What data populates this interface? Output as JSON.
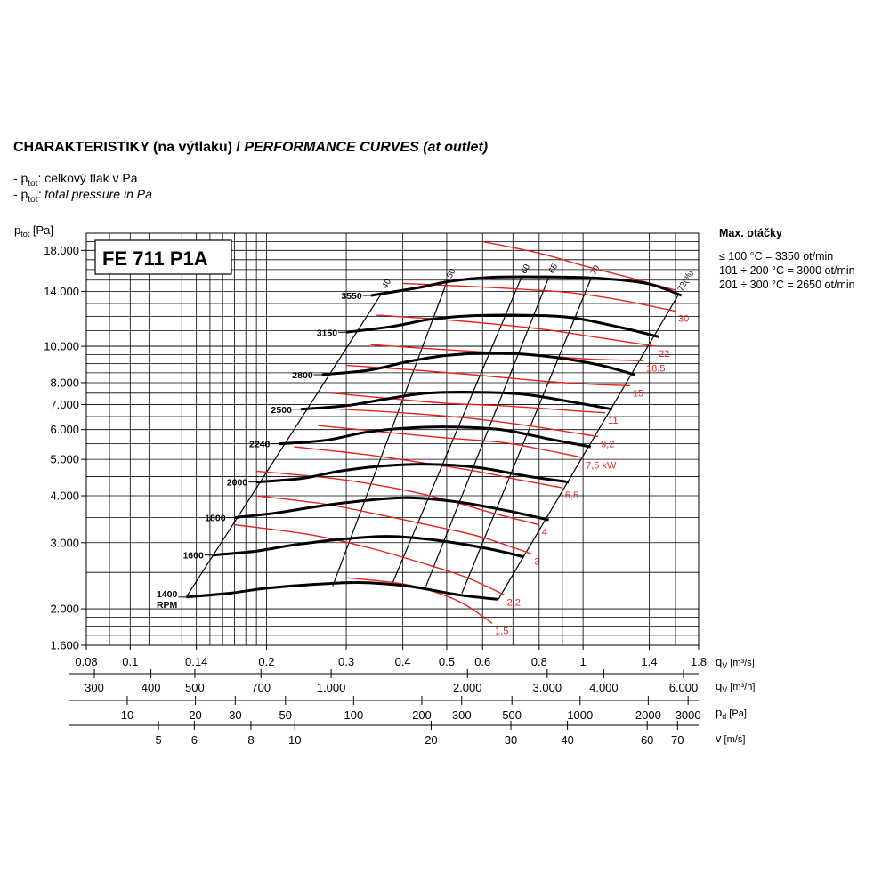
{
  "header": {
    "title_cz": "CHARAKTERISTIKY (na výtlaku) /",
    "title_en": "PERFORMANCE CURVES (at outlet)",
    "notes": [
      {
        "prefix": "- p",
        "sub": "tot",
        "text": ": celkový tlak v Pa",
        "italic": false
      },
      {
        "prefix": "- p",
        "sub": "tot",
        "text": ": total pressure in Pa",
        "italic": true
      }
    ]
  },
  "max_speed": {
    "title": "Max. otáčky",
    "lines": [
      "≤ 100 °C = 3350 ot/min",
      "101 ÷ 200 °C = 3000 ot/min",
      "201 ÷ 300 °C = 2650 ot/min"
    ]
  },
  "colors": {
    "rpm_curve": "#000000",
    "power_curve": "#e8231e",
    "grid": "#000000"
  },
  "chart_data": {
    "type": "line",
    "model_label": "FE 711 P1A",
    "x_scale": "log",
    "y_scale": "log",
    "xlim": [
      0.08,
      1.8
    ],
    "ylim": [
      1600,
      20000
    ],
    "grid": true,
    "y_axis": {
      "label": "p",
      "label_sub": "tot",
      "label_unit": "[Pa]",
      "ticks": [
        {
          "value": 1600,
          "label": "1.600"
        },
        {
          "value": 2000,
          "label": "2.000"
        },
        {
          "value": 3000,
          "label": "3.000"
        },
        {
          "value": 4000,
          "label": "4.000"
        },
        {
          "value": 5000,
          "label": "5.000"
        },
        {
          "value": 6000,
          "label": "6.000"
        },
        {
          "value": 7000,
          "label": "7.000"
        },
        {
          "value": 8000,
          "label": "8.000"
        },
        {
          "value": 10000,
          "label": "10.000"
        },
        {
          "value": 14000,
          "label": "14.000"
        },
        {
          "value": 18000,
          "label": "18.000"
        }
      ]
    },
    "x_axes": [
      {
        "name": "q",
        "sub": "V",
        "unit": "[m³/s]",
        "ticks": [
          {
            "v": 0.08,
            "label": "0.08"
          },
          {
            "v": 0.1,
            "label": "0.1"
          },
          {
            "v": 0.14,
            "label": "0.14"
          },
          {
            "v": 0.2,
            "label": "0.2"
          },
          {
            "v": 0.3,
            "label": "0.3"
          },
          {
            "v": 0.4,
            "label": "0.4"
          },
          {
            "v": 0.5,
            "label": "0.5"
          },
          {
            "v": 0.6,
            "label": "0.6"
          },
          {
            "v": 0.8,
            "label": "0.8"
          },
          {
            "v": 1,
            "label": "1"
          },
          {
            "v": 1.4,
            "label": "1.4"
          },
          {
            "v": 1.8,
            "label": "1.8"
          }
        ]
      },
      {
        "name": "q",
        "sub": "V",
        "unit": "[m³/h]",
        "ticks": [
          {
            "v": 300,
            "label": "300"
          },
          {
            "v": 400,
            "label": "400"
          },
          {
            "v": 500,
            "label": "500"
          },
          {
            "v": 700,
            "label": "700"
          },
          {
            "v": 1000,
            "label": "1.000"
          },
          {
            "v": 2000,
            "label": "2.000"
          },
          {
            "v": 3000,
            "label": "3.000"
          },
          {
            "v": 4000,
            "label": "4.000"
          },
          {
            "v": 6000,
            "label": "6.000"
          }
        ]
      },
      {
        "name": "p",
        "sub": "d",
        "unit": "[Pa]",
        "ticks": [
          {
            "v": 10,
            "label": "10"
          },
          {
            "v": 20,
            "label": "20"
          },
          {
            "v": 30,
            "label": "30"
          },
          {
            "v": 50,
            "label": "50"
          },
          {
            "v": 100,
            "label": "100"
          },
          {
            "v": 200,
            "label": "200"
          },
          {
            "v": 300,
            "label": "300"
          },
          {
            "v": 500,
            "label": "500"
          },
          {
            "v": 1000,
            "label": "1000"
          },
          {
            "v": 2000,
            "label": "2000"
          },
          {
            "v": 3000,
            "label": "3000"
          }
        ]
      },
      {
        "name": "v",
        "sub": "",
        "unit": "[m/s]",
        "ticks": [
          {
            "v": 5,
            "label": "5"
          },
          {
            "v": 6,
            "label": "6"
          },
          {
            "v": 8,
            "label": "8"
          },
          {
            "v": 10,
            "label": "10"
          },
          {
            "v": 20,
            "label": "20"
          },
          {
            "v": 30,
            "label": "30"
          },
          {
            "v": 40,
            "label": "40"
          },
          {
            "v": 60,
            "label": "60"
          },
          {
            "v": 70,
            "label": "70"
          }
        ]
      }
    ],
    "rpm_curves": [
      {
        "label": "3550",
        "points": [
          [
            0.34,
            13650
          ],
          [
            0.43,
            14300
          ],
          [
            0.51,
            14900
          ],
          [
            0.62,
            15250
          ],
          [
            0.8,
            15300
          ],
          [
            1.05,
            15200
          ],
          [
            1.38,
            14700
          ],
          [
            1.65,
            13650
          ]
        ]
      },
      {
        "label": "3150",
        "points": [
          [
            0.3,
            10900
          ],
          [
            0.38,
            11300
          ],
          [
            0.46,
            11800
          ],
          [
            0.56,
            12050
          ],
          [
            0.72,
            12100
          ],
          [
            0.93,
            11950
          ],
          [
            1.2,
            11250
          ],
          [
            1.47,
            10600
          ]
        ]
      },
      {
        "label": "2800",
        "points": [
          [
            0.265,
            8400
          ],
          [
            0.34,
            8650
          ],
          [
            0.41,
            9100
          ],
          [
            0.5,
            9450
          ],
          [
            0.64,
            9600
          ],
          [
            0.83,
            9400
          ],
          [
            1.07,
            8950
          ],
          [
            1.3,
            8400
          ]
        ]
      },
      {
        "label": "2500",
        "points": [
          [
            0.238,
            6800
          ],
          [
            0.3,
            6950
          ],
          [
            0.37,
            7250
          ],
          [
            0.45,
            7500
          ],
          [
            0.57,
            7550
          ],
          [
            0.74,
            7450
          ],
          [
            0.95,
            7100
          ],
          [
            1.16,
            6800
          ]
        ]
      },
      {
        "label": "2240",
        "points": [
          [
            0.213,
            5500
          ],
          [
            0.27,
            5620
          ],
          [
            0.33,
            5900
          ],
          [
            0.4,
            6050
          ],
          [
            0.51,
            6100
          ],
          [
            0.66,
            6000
          ],
          [
            0.85,
            5650
          ],
          [
            1.04,
            5400
          ]
        ]
      },
      {
        "label": "2000",
        "points": [
          [
            0.19,
            4350
          ],
          [
            0.24,
            4450
          ],
          [
            0.29,
            4650
          ],
          [
            0.36,
            4800
          ],
          [
            0.46,
            4850
          ],
          [
            0.59,
            4750
          ],
          [
            0.76,
            4500
          ],
          [
            0.93,
            4350
          ]
        ]
      },
      {
        "label": "1800",
        "points": [
          [
            0.17,
            3500
          ],
          [
            0.21,
            3600
          ],
          [
            0.26,
            3750
          ],
          [
            0.32,
            3870
          ],
          [
            0.41,
            3950
          ],
          [
            0.53,
            3850
          ],
          [
            0.68,
            3650
          ],
          [
            0.84,
            3450
          ]
        ]
      },
      {
        "label": "1600",
        "points": [
          [
            0.152,
            2780
          ],
          [
            0.19,
            2850
          ],
          [
            0.23,
            2960
          ],
          [
            0.29,
            3060
          ],
          [
            0.37,
            3120
          ],
          [
            0.47,
            3050
          ],
          [
            0.61,
            2900
          ],
          [
            0.74,
            2750
          ]
        ]
      },
      {
        "label": "1400",
        "sub_label": "RPM",
        "points": [
          [
            0.133,
            2150
          ],
          [
            0.165,
            2200
          ],
          [
            0.2,
            2270
          ],
          [
            0.25,
            2320
          ],
          [
            0.32,
            2350
          ],
          [
            0.41,
            2300
          ],
          [
            0.53,
            2180
          ],
          [
            0.65,
            2120
          ]
        ]
      }
    ],
    "power_curves": [
      {
        "label": "1,5",
        "points": [
          [
            0.3,
            2420
          ],
          [
            0.4,
            2330
          ],
          [
            0.48,
            2200
          ],
          [
            0.55,
            2050
          ],
          [
            0.63,
            1830
          ]
        ]
      },
      {
        "label": "2,2",
        "points": [
          [
            0.17,
            3350
          ],
          [
            0.25,
            3150
          ],
          [
            0.34,
            2900
          ],
          [
            0.44,
            2650
          ],
          [
            0.55,
            2430
          ],
          [
            0.67,
            2180
          ]
        ]
      },
      {
        "label": "3",
        "points": [
          [
            0.19,
            4000
          ],
          [
            0.27,
            3800
          ],
          [
            0.36,
            3550
          ],
          [
            0.48,
            3300
          ],
          [
            0.6,
            3100
          ],
          [
            0.77,
            2800
          ]
        ]
      },
      {
        "label": "4",
        "points": [
          [
            0.19,
            4650
          ],
          [
            0.28,
            4450
          ],
          [
            0.38,
            4200
          ],
          [
            0.5,
            3900
          ],
          [
            0.63,
            3600
          ],
          [
            0.8,
            3350
          ]
        ]
      },
      {
        "label": "5,5",
        "points": [
          [
            0.23,
            5400
          ],
          [
            0.33,
            5150
          ],
          [
            0.44,
            4900
          ],
          [
            0.58,
            4650
          ],
          [
            0.73,
            4400
          ],
          [
            0.9,
            4200
          ]
        ]
      },
      {
        "label": "7,5 kW",
        "points": [
          [
            0.26,
            6150
          ],
          [
            0.37,
            5900
          ],
          [
            0.5,
            5700
          ],
          [
            0.66,
            5550
          ],
          [
            0.82,
            5300
          ],
          [
            1.0,
            5050
          ]
        ]
      },
      {
        "label": "9,2",
        "points": [
          [
            0.29,
            6800
          ],
          [
            0.4,
            6650
          ],
          [
            0.55,
            6450
          ],
          [
            0.72,
            6200
          ],
          [
            0.9,
            5950
          ],
          [
            1.08,
            5750
          ]
        ]
      },
      {
        "label": "11",
        "points": [
          [
            0.28,
            7500
          ],
          [
            0.38,
            7250
          ],
          [
            0.5,
            7050
          ],
          [
            0.66,
            6950
          ],
          [
            0.86,
            6800
          ],
          [
            1.12,
            6650
          ]
        ]
      },
      {
        "label": "15",
        "points": [
          [
            0.3,
            8900
          ],
          [
            0.42,
            8650
          ],
          [
            0.57,
            8400
          ],
          [
            0.75,
            8150
          ],
          [
            0.98,
            7950
          ],
          [
            1.27,
            7850
          ]
        ]
      },
      {
        "label": "18,5",
        "points": [
          [
            0.34,
            10100
          ],
          [
            0.46,
            9850
          ],
          [
            0.61,
            9650
          ],
          [
            0.8,
            9450
          ],
          [
            1.03,
            9250
          ],
          [
            1.36,
            9150
          ]
        ]
      },
      {
        "label": "22",
        "points": [
          [
            0.35,
            12100
          ],
          [
            0.48,
            11800
          ],
          [
            0.64,
            11450
          ],
          [
            0.84,
            11050
          ],
          [
            1.08,
            10550
          ],
          [
            1.45,
            10000
          ]
        ]
      },
      {
        "label": "30",
        "points": [
          [
            0.4,
            14700
          ],
          [
            0.55,
            14450
          ],
          [
            0.72,
            14200
          ],
          [
            0.93,
            13900
          ],
          [
            1.2,
            13300
          ],
          [
            1.6,
            12400
          ]
        ]
      },
      {
        "label": "",
        "points": [
          [
            0.6,
            19000
          ],
          [
            0.8,
            17700
          ],
          [
            1.0,
            16400
          ],
          [
            1.25,
            15300
          ],
          [
            1.6,
            14100
          ]
        ]
      }
    ],
    "efficiency_lines": [
      {
        "label": "40",
        "points": [
          [
            0.133,
            2150
          ],
          [
            0.36,
            13900
          ]
        ]
      },
      {
        "label": "50",
        "points": [
          [
            0.28,
            2300
          ],
          [
            0.5,
            14800
          ]
        ]
      },
      {
        "label": "60",
        "points": [
          [
            0.38,
            2350
          ],
          [
            0.73,
            15200
          ]
        ]
      },
      {
        "label": "65",
        "points": [
          [
            0.45,
            2300
          ],
          [
            0.84,
            15250
          ]
        ]
      },
      {
        "label": "70",
        "points": [
          [
            0.54,
            2200
          ],
          [
            1.04,
            15100
          ]
        ]
      },
      {
        "label": "72(%)",
        "points": [
          [
            0.65,
            2120
          ],
          [
            1.62,
            13650
          ]
        ]
      }
    ]
  }
}
